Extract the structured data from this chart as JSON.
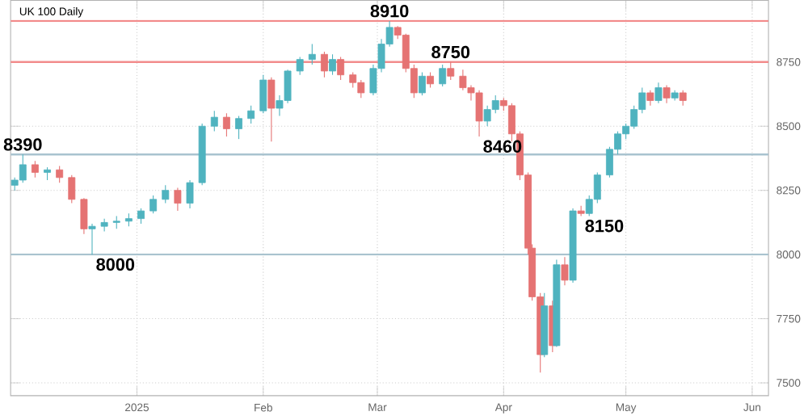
{
  "chart_data": {
    "type": "candlestick",
    "title": "UK 100 Daily",
    "x": [
      "2024-12-02",
      "2024-12-04",
      "2024-12-07",
      "2024-12-10",
      "2024-12-13",
      "2024-12-16",
      "2024-12-19",
      "2024-12-21",
      "2024-12-24",
      "2024-12-27",
      "2024-12-30",
      "2025-01-02",
      "2025-01-05",
      "2025-01-08",
      "2025-01-11",
      "2025-01-14",
      "2025-01-17",
      "2025-01-20",
      "2025-01-23",
      "2025-01-26",
      "2025-01-29",
      "2025-02-01",
      "2025-02-03",
      "2025-02-05",
      "2025-02-07",
      "2025-02-10",
      "2025-02-13",
      "2025-02-16",
      "2025-02-18",
      "2025-02-20",
      "2025-02-23",
      "2025-02-25",
      "2025-02-28",
      "2025-03-02",
      "2025-03-04",
      "2025-03-06",
      "2025-03-08",
      "2025-03-10",
      "2025-03-12",
      "2025-03-14",
      "2025-03-17",
      "2025-03-19",
      "2025-03-22",
      "2025-03-24",
      "2025-03-26",
      "2025-03-28",
      "2025-03-30",
      "2025-04-01",
      "2025-04-03",
      "2025-04-05",
      "2025-04-07",
      "2025-04-08",
      "2025-04-10",
      "2025-04-11",
      "2025-04-13",
      "2025-04-14",
      "2025-04-16",
      "2025-04-18",
      "2025-04-20",
      "2025-04-22",
      "2025-04-24",
      "2025-04-27",
      "2025-04-29",
      "2025-05-01",
      "2025-05-03",
      "2025-05-05",
      "2025-05-07",
      "2025-05-09",
      "2025-05-11",
      "2025-05-13",
      "2025-05-15"
    ],
    "ohlc": [
      [
        8270,
        8300,
        8250,
        8290
      ],
      [
        8290,
        8390,
        8280,
        8350
      ],
      [
        8350,
        8365,
        8300,
        8320
      ],
      [
        8320,
        8340,
        8290,
        8330
      ],
      [
        8330,
        8345,
        8280,
        8300
      ],
      [
        8300,
        8310,
        8200,
        8215
      ],
      [
        8215,
        8220,
        8080,
        8100
      ],
      [
        8100,
        8120,
        8000,
        8110
      ],
      [
        8110,
        8140,
        8090,
        8125
      ],
      [
        8125,
        8150,
        8100,
        8130
      ],
      [
        8130,
        8160,
        8110,
        8140
      ],
      [
        8140,
        8180,
        8120,
        8170
      ],
      [
        8170,
        8230,
        8160,
        8215
      ],
      [
        8215,
        8270,
        8200,
        8250
      ],
      [
        8250,
        8260,
        8170,
        8200
      ],
      [
        8200,
        8290,
        8180,
        8280
      ],
      [
        8280,
        8510,
        8270,
        8500
      ],
      [
        8500,
        8560,
        8480,
        8535
      ],
      [
        8535,
        8550,
        8460,
        8490
      ],
      [
        8490,
        8540,
        8450,
        8530
      ],
      [
        8530,
        8580,
        8510,
        8560
      ],
      [
        8560,
        8700,
        8550,
        8680
      ],
      [
        8680,
        8690,
        8440,
        8570
      ],
      [
        8570,
        8620,
        8540,
        8600
      ],
      [
        8600,
        8720,
        8590,
        8715
      ],
      [
        8715,
        8770,
        8700,
        8760
      ],
      [
        8760,
        8820,
        8740,
        8780
      ],
      [
        8780,
        8790,
        8690,
        8715
      ],
      [
        8715,
        8780,
        8700,
        8760
      ],
      [
        8760,
        8770,
        8680,
        8700
      ],
      [
        8700,
        8710,
        8650,
        8670
      ],
      [
        8670,
        8680,
        8610,
        8630
      ],
      [
        8630,
        8740,
        8620,
        8725
      ],
      [
        8725,
        8840,
        8710,
        8820
      ],
      [
        8820,
        8910,
        8810,
        8885
      ],
      [
        8885,
        8890,
        8840,
        8855
      ],
      [
        8855,
        8860,
        8710,
        8725
      ],
      [
        8725,
        8740,
        8610,
        8630
      ],
      [
        8630,
        8710,
        8620,
        8695
      ],
      [
        8695,
        8710,
        8650,
        8665
      ],
      [
        8665,
        8740,
        8655,
        8725
      ],
      [
        8725,
        8750,
        8680,
        8695
      ],
      [
        8695,
        8720,
        8640,
        8650
      ],
      [
        8650,
        8660,
        8600,
        8630
      ],
      [
        8630,
        8640,
        8460,
        8520
      ],
      [
        8520,
        8580,
        8500,
        8565
      ],
      [
        8565,
        8620,
        8550,
        8600
      ],
      [
        8600,
        8610,
        8560,
        8580
      ],
      [
        8580,
        8590,
        8440,
        8470
      ],
      [
        8470,
        8480,
        8290,
        8310
      ],
      [
        8310,
        8320,
        8000,
        8025
      ],
      [
        8025,
        8040,
        7820,
        7835
      ],
      [
        7835,
        7850,
        7540,
        7610
      ],
      [
        7610,
        7850,
        7600,
        7800
      ],
      [
        7800,
        7820,
        7620,
        7645
      ],
      [
        7645,
        7980,
        7640,
        7960
      ],
      [
        7960,
        7990,
        7880,
        7900
      ],
      [
        7900,
        8180,
        7890,
        8170
      ],
      [
        8170,
        8190,
        8150,
        8160
      ],
      [
        8160,
        8230,
        8150,
        8215
      ],
      [
        8215,
        8320,
        8200,
        8310
      ],
      [
        8310,
        8420,
        8300,
        8410
      ],
      [
        8410,
        8480,
        8390,
        8470
      ],
      [
        8470,
        8510,
        8450,
        8500
      ],
      [
        8500,
        8580,
        8490,
        8565
      ],
      [
        8565,
        8650,
        8550,
        8630
      ],
      [
        8630,
        8640,
        8580,
        8600
      ],
      [
        8600,
        8670,
        8590,
        8650
      ],
      [
        8650,
        8660,
        8590,
        8610
      ],
      [
        8610,
        8640,
        8600,
        8630
      ],
      [
        8630,
        8640,
        8580,
        8600
      ]
    ],
    "colors": [
      "#4fb3bf",
      "#4fb3bf",
      "#e57373",
      "#4fb3bf",
      "#e57373",
      "#e57373",
      "#e57373",
      "#4fb3bf",
      "#4fb3bf",
      "#4fb3bf",
      "#4fb3bf",
      "#4fb3bf",
      "#4fb3bf",
      "#4fb3bf",
      "#e57373",
      "#4fb3bf",
      "#4fb3bf",
      "#4fb3bf",
      "#e57373",
      "#4fb3bf",
      "#4fb3bf",
      "#4fb3bf",
      "#e57373",
      "#4fb3bf",
      "#4fb3bf",
      "#4fb3bf",
      "#4fb3bf",
      "#e57373",
      "#4fb3bf",
      "#e57373",
      "#e57373",
      "#e57373",
      "#4fb3bf",
      "#4fb3bf",
      "#4fb3bf",
      "#e57373",
      "#e57373",
      "#e57373",
      "#4fb3bf",
      "#e57373",
      "#4fb3bf",
      "#e57373",
      "#e57373",
      "#e57373",
      "#e57373",
      "#4fb3bf",
      "#4fb3bf",
      "#e57373",
      "#e57373",
      "#e57373",
      "#e57373",
      "#e57373",
      "#e57373",
      "#4fb3bf",
      "#e57373",
      "#4fb3bf",
      "#e57373",
      "#4fb3bf",
      "#e57373",
      "#4fb3bf",
      "#4fb3bf",
      "#4fb3bf",
      "#4fb3bf",
      "#4fb3bf",
      "#4fb3bf",
      "#4fb3bf",
      "#e57373",
      "#4fb3bf",
      "#e57373",
      "#4fb3bf",
      "#e57373"
    ],
    "xlim": [
      "2024-12-01",
      "2025-06-05"
    ],
    "xticks": [
      {
        "value": "2025-01-01",
        "label": "2025"
      },
      {
        "value": "2025-02-01",
        "label": "Feb"
      },
      {
        "value": "2025-03-01",
        "label": "Mar"
      },
      {
        "value": "2025-04-01",
        "label": "Apr"
      },
      {
        "value": "2025-05-01",
        "label": "May"
      },
      {
        "value": "2025-06-01",
        "label": "Jun"
      }
    ],
    "ylim": [
      7450,
      8990
    ],
    "yticks": [
      7500,
      7750,
      8000,
      8250,
      8500,
      8750
    ],
    "grid": true,
    "ref_lines": [
      {
        "axis": "y",
        "value": 8910,
        "color": "#f28b8b"
      },
      {
        "axis": "y",
        "value": 8750,
        "color": "#f28b8b"
      },
      {
        "axis": "y",
        "value": 8390,
        "color": "#a9c3cf"
      },
      {
        "axis": "y",
        "value": 8000,
        "color": "#a9c3cf"
      }
    ],
    "annotations": [
      {
        "text": "8910",
        "x": "2025-03-04",
        "y": 8910
      },
      {
        "text": "8750",
        "x": "2025-03-19",
        "y": 8750
      },
      {
        "text": "8460",
        "x": "2025-03-26",
        "y": 8460
      },
      {
        "text": "8390",
        "x": "2024-12-04",
        "y": 8390
      },
      {
        "text": "8000",
        "x": "2024-12-21",
        "y": 8000
      },
      {
        "text": "8150",
        "x": "2025-04-20",
        "y": 8150
      }
    ]
  }
}
